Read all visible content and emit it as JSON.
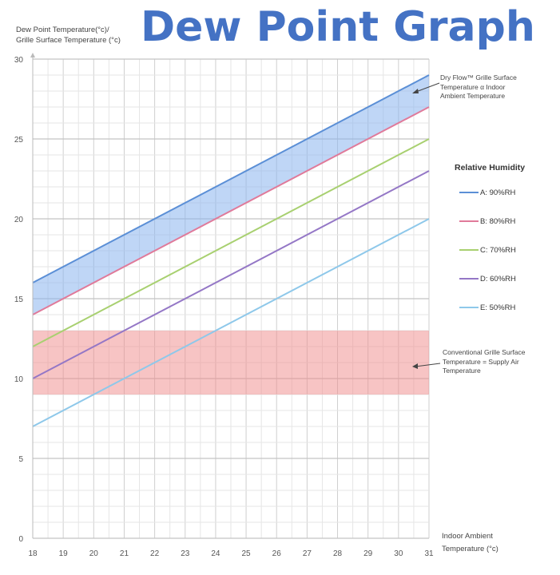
{
  "header": {
    "title": "Dew Point Graph"
  },
  "chart_data": {
    "type": "line",
    "title": "Dew Point Graph",
    "ylabel_lines": [
      "Dew Point Temperature(°c)/",
      "Grille Surface Temperature (°c)"
    ],
    "xlabel_lines": [
      "Indoor Ambient",
      "Temperature (°c)"
    ],
    "xlim": [
      18,
      31
    ],
    "ylim": [
      0,
      30
    ],
    "x_ticks": [
      18,
      19,
      20,
      21,
      22,
      23,
      24,
      25,
      26,
      27,
      28,
      29,
      30,
      31
    ],
    "y_ticks": [
      0,
      5,
      10,
      15,
      20,
      25,
      30
    ],
    "grid": true,
    "legend": {
      "title": "Relative Humidity",
      "placement": "right"
    },
    "series": [
      {
        "name": "A: 90%RH",
        "color": "#5b8fd6",
        "x": [
          18,
          31
        ],
        "y": [
          16,
          29
        ]
      },
      {
        "name": "B: 80%RH",
        "color": "#e07a9a",
        "x": [
          18,
          31
        ],
        "y": [
          14,
          27
        ]
      },
      {
        "name": "C: 70%RH",
        "color": "#a8d070",
        "x": [
          18,
          31
        ],
        "y": [
          12,
          25
        ]
      },
      {
        "name": "D: 60%RH",
        "color": "#9477c6",
        "x": [
          18,
          31
        ],
        "y": [
          10,
          23
        ]
      },
      {
        "name": "E: 50%RH",
        "color": "#8ec8ea",
        "x": [
          18,
          31
        ],
        "y": [
          7,
          20
        ]
      }
    ],
    "bands": [
      {
        "type": "between_series",
        "upper": "A: 90%RH",
        "lower": "B: 80%RH",
        "color": "#8ab4ef"
      },
      {
        "type": "horizontal",
        "y_range": [
          9,
          13
        ],
        "color": "#f08a8a"
      }
    ],
    "annotations": [
      {
        "text_lines": [
          "Dry Flow™ Grille Surface",
          "Temperature α Indoor",
          "Ambient Temperature"
        ],
        "points_to": "blue band"
      },
      {
        "text_lines": [
          "Conventional Grille Surface",
          "Temperature = Supply Air",
          "Temperature"
        ],
        "points_to": "red band"
      }
    ]
  }
}
